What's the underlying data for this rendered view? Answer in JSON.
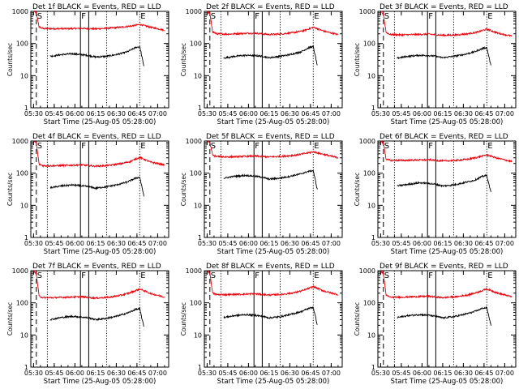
{
  "figure": {
    "xlabel": "Start Time (25-Aug-05 05:28:00)",
    "ylabel": "Counts/sec",
    "x_tick_labels": [
      "05:30",
      "05:45",
      "06:00",
      "06:15",
      "06:30",
      "06:45",
      "07:00"
    ],
    "y_tick_labels": [
      "1",
      "10",
      "100",
      "1000"
    ],
    "markers": [
      {
        "label": "S",
        "style": "dashed",
        "time": "05:32"
      },
      {
        "label": "",
        "style": "dotted",
        "time": "05:40"
      },
      {
        "label": "F",
        "style": "solid",
        "time": "06:04"
      },
      {
        "label": "",
        "style": "solid",
        "time": "06:10"
      },
      {
        "label": "",
        "style": "dotted",
        "time": "06:23"
      },
      {
        "label": "E",
        "style": "dotted",
        "time": "06:47"
      }
    ],
    "colors": {
      "events": "#000000",
      "lld": "#e8000b",
      "axes": "#000000"
    }
  },
  "chart_data": [
    {
      "type": "line",
      "title": "Det 1f BLACK = Events, RED = LLD",
      "xlabel": "Start Time (25-Aug-05 05:28:00)",
      "ylabel": "Counts/sec",
      "x_range": [
        "05:28",
        "07:08"
      ],
      "ylim": [
        1,
        1000
      ],
      "yscale": "log",
      "series": [
        {
          "color": "#e8000b",
          "x": [
            "05:30",
            "05:32",
            "05:34",
            "05:37",
            "05:45",
            "05:55",
            "06:05",
            "06:15",
            "06:25",
            "06:33",
            "06:40",
            "06:47",
            "06:55",
            "07:05"
          ],
          "values": [
            1000,
            900,
            330,
            290,
            290,
            290,
            295,
            285,
            300,
            320,
            345,
            390,
            320,
            260
          ]
        },
        {
          "color": "#000000",
          "x": [
            "05:42",
            "05:50",
            "05:58",
            "06:05",
            "06:10",
            "06:15",
            "06:23",
            "06:30",
            "06:38",
            "06:44",
            "06:47",
            "06:50"
          ],
          "values": [
            40,
            45,
            48,
            45,
            42,
            38,
            40,
            45,
            55,
            75,
            80,
            20
          ]
        }
      ]
    },
    {
      "type": "line",
      "title": "Det 2f BLACK = Events, RED = LLD",
      "xlabel": "Start Time (25-Aug-05 05:28:00)",
      "ylabel": "Counts/sec",
      "x_range": [
        "05:28",
        "07:08"
      ],
      "ylim": [
        1,
        1000
      ],
      "yscale": "log",
      "series": [
        {
          "color": "#e8000b",
          "x": [
            "05:30",
            "05:32",
            "05:34",
            "05:37",
            "05:45",
            "05:55",
            "06:05",
            "06:15",
            "06:25",
            "06:33",
            "06:40",
            "06:47",
            "06:55",
            "07:05"
          ],
          "values": [
            1000,
            850,
            230,
            200,
            195,
            205,
            210,
            190,
            200,
            220,
            250,
            320,
            240,
            190
          ]
        },
        {
          "color": "#000000",
          "x": [
            "05:42",
            "05:50",
            "05:58",
            "06:05",
            "06:10",
            "06:15",
            "06:23",
            "06:30",
            "06:38",
            "06:44",
            "06:47",
            "06:50"
          ],
          "values": [
            35,
            40,
            43,
            42,
            40,
            36,
            40,
            45,
            55,
            75,
            80,
            20
          ]
        }
      ]
    },
    {
      "type": "line",
      "title": "Det 3f BLACK = Events, RED = LLD",
      "xlabel": "Start Time (25-Aug-05 05:28:00)",
      "ylabel": "Counts/sec",
      "x_range": [
        "05:28",
        "07:08"
      ],
      "ylim": [
        1,
        1000
      ],
      "yscale": "log",
      "series": [
        {
          "color": "#e8000b",
          "x": [
            "05:30",
            "05:32",
            "05:34",
            "05:37",
            "05:45",
            "05:55",
            "06:05",
            "06:15",
            "06:25",
            "06:33",
            "06:40",
            "06:47",
            "06:55",
            "07:05"
          ],
          "values": [
            1000,
            800,
            220,
            190,
            185,
            190,
            195,
            180,
            185,
            200,
            225,
            280,
            210,
            170
          ]
        },
        {
          "color": "#000000",
          "x": [
            "05:42",
            "05:50",
            "05:58",
            "06:05",
            "06:10",
            "06:15",
            "06:23",
            "06:30",
            "06:38",
            "06:44",
            "06:47",
            "06:50"
          ],
          "values": [
            35,
            40,
            43,
            42,
            40,
            36,
            40,
            45,
            55,
            70,
            75,
            20
          ]
        }
      ]
    },
    {
      "type": "line",
      "title": "Det 4f BLACK = Events, RED = LLD",
      "xlabel": "Start Time (25-Aug-05 05:28:00)",
      "ylabel": "Counts/sec",
      "x_range": [
        "05:28",
        "07:08"
      ],
      "ylim": [
        1,
        1000
      ],
      "yscale": "log",
      "series": [
        {
          "color": "#e8000b",
          "x": [
            "05:30",
            "05:32",
            "05:34",
            "05:37",
            "05:45",
            "05:55",
            "06:05",
            "06:15",
            "06:25",
            "06:33",
            "06:40",
            "06:47",
            "06:55",
            "07:05"
          ],
          "values": [
            1000,
            850,
            190,
            170,
            170,
            175,
            180,
            165,
            175,
            195,
            230,
            310,
            220,
            180
          ]
        },
        {
          "color": "#000000",
          "x": [
            "05:42",
            "05:50",
            "05:58",
            "06:05",
            "06:10",
            "06:15",
            "06:23",
            "06:30",
            "06:38",
            "06:44",
            "06:47",
            "06:50"
          ],
          "values": [
            35,
            40,
            43,
            40,
            38,
            34,
            38,
            43,
            53,
            70,
            75,
            20
          ]
        }
      ]
    },
    {
      "type": "line",
      "title": "Det 5f BLACK = Events, RED = LLD",
      "xlabel": "Start Time (25-Aug-05 05:28:00)",
      "ylabel": "Counts/sec",
      "x_range": [
        "05:28",
        "07:08"
      ],
      "ylim": [
        1,
        1000
      ],
      "yscale": "log",
      "series": [
        {
          "color": "#e8000b",
          "x": [
            "05:30",
            "05:32",
            "05:34",
            "05:37",
            "05:45",
            "05:55",
            "06:05",
            "06:15",
            "06:25",
            "06:33",
            "06:40",
            "06:47",
            "06:55",
            "07:05"
          ],
          "values": [
            1000,
            900,
            360,
            330,
            320,
            330,
            340,
            320,
            335,
            360,
            400,
            460,
            380,
            300
          ]
        },
        {
          "color": "#000000",
          "x": [
            "05:42",
            "05:50",
            "05:58",
            "06:05",
            "06:10",
            "06:15",
            "06:23",
            "06:30",
            "06:38",
            "06:44",
            "06:47",
            "06:50"
          ],
          "values": [
            70,
            80,
            85,
            80,
            75,
            65,
            70,
            80,
            95,
            115,
            120,
            30
          ]
        }
      ]
    },
    {
      "type": "line",
      "title": "Det 6f BLACK = Events, RED = LLD",
      "xlabel": "Start Time (25-Aug-05 05:28:00)",
      "ylabel": "Counts/sec",
      "x_range": [
        "05:28",
        "07:08"
      ],
      "ylim": [
        1,
        1000
      ],
      "yscale": "log",
      "series": [
        {
          "color": "#e8000b",
          "x": [
            "05:30",
            "05:32",
            "05:34",
            "05:37",
            "05:45",
            "05:55",
            "06:05",
            "06:15",
            "06:25",
            "06:33",
            "06:40",
            "06:47",
            "06:55",
            "07:05"
          ],
          "values": [
            1000,
            850,
            270,
            250,
            250,
            255,
            260,
            240,
            250,
            270,
            310,
            370,
            290,
            230
          ]
        },
        {
          "color": "#000000",
          "x": [
            "05:42",
            "05:50",
            "05:58",
            "06:05",
            "06:10",
            "06:15",
            "06:23",
            "06:30",
            "06:38",
            "06:44",
            "06:47",
            "06:50"
          ],
          "values": [
            40,
            45,
            50,
            48,
            45,
            40,
            43,
            50,
            60,
            80,
            85,
            25
          ]
        }
      ]
    },
    {
      "type": "line",
      "title": "Det 7f BLACK = Events, RED = LLD",
      "xlabel": "Start Time (25-Aug-05 05:28:00)",
      "ylabel": "Counts/sec",
      "x_range": [
        "05:28",
        "07:08"
      ],
      "ylim": [
        1,
        1000
      ],
      "yscale": "log",
      "series": [
        {
          "color": "#e8000b",
          "x": [
            "05:30",
            "05:32",
            "05:34",
            "05:37",
            "05:45",
            "05:55",
            "06:05",
            "06:15",
            "06:25",
            "06:33",
            "06:40",
            "06:47",
            "06:55",
            "07:05"
          ],
          "values": [
            1000,
            800,
            160,
            145,
            145,
            150,
            155,
            140,
            150,
            170,
            205,
            270,
            195,
            150
          ]
        },
        {
          "color": "#000000",
          "x": [
            "05:42",
            "05:50",
            "05:58",
            "06:05",
            "06:10",
            "06:15",
            "06:23",
            "06:30",
            "06:38",
            "06:44",
            "06:47",
            "06:50"
          ],
          "values": [
            30,
            35,
            38,
            36,
            34,
            30,
            33,
            38,
            48,
            62,
            65,
            18
          ]
        }
      ]
    },
    {
      "type": "line",
      "title": "Det 8f BLACK = Events, RED = LLD",
      "xlabel": "Start Time (25-Aug-05 05:28:00)",
      "ylabel": "Counts/sec",
      "x_range": [
        "05:28",
        "07:08"
      ],
      "ylim": [
        1,
        1000
      ],
      "yscale": "log",
      "series": [
        {
          "color": "#e8000b",
          "x": [
            "05:30",
            "05:32",
            "05:34",
            "05:37",
            "05:45",
            "05:55",
            "06:05",
            "06:15",
            "06:25",
            "06:33",
            "06:40",
            "06:47",
            "06:55",
            "07:05"
          ],
          "values": [
            1000,
            850,
            200,
            180,
            180,
            185,
            190,
            175,
            185,
            205,
            245,
            320,
            230,
            180
          ]
        },
        {
          "color": "#000000",
          "x": [
            "05:42",
            "05:50",
            "05:58",
            "06:05",
            "06:10",
            "06:15",
            "06:23",
            "06:30",
            "06:38",
            "06:44",
            "06:47",
            "06:50"
          ],
          "values": [
            35,
            40,
            43,
            41,
            38,
            34,
            37,
            43,
            53,
            68,
            72,
            20
          ]
        }
      ]
    },
    {
      "type": "line",
      "title": "Det 9f BLACK = Events, RED = LLD",
      "xlabel": "Start Time (25-Aug-05 05:28:00)",
      "ylabel": "Counts/sec",
      "x_range": [
        "05:28",
        "07:08"
      ],
      "ylim": [
        1,
        1000
      ],
      "yscale": "log",
      "series": [
        {
          "color": "#e8000b",
          "x": [
            "05:30",
            "05:32",
            "05:34",
            "05:37",
            "05:45",
            "05:55",
            "06:05",
            "06:15",
            "06:25",
            "06:33",
            "06:40",
            "06:47",
            "06:55",
            "07:05"
          ],
          "values": [
            1000,
            800,
            170,
            150,
            150,
            155,
            160,
            145,
            155,
            175,
            210,
            270,
            200,
            155
          ]
        },
        {
          "color": "#000000",
          "x": [
            "05:42",
            "05:50",
            "05:58",
            "06:05",
            "06:10",
            "06:15",
            "06:23",
            "06:30",
            "06:38",
            "06:44",
            "06:47",
            "06:50"
          ],
          "values": [
            35,
            40,
            43,
            41,
            38,
            34,
            37,
            43,
            53,
            68,
            70,
            20
          ]
        }
      ]
    }
  ]
}
